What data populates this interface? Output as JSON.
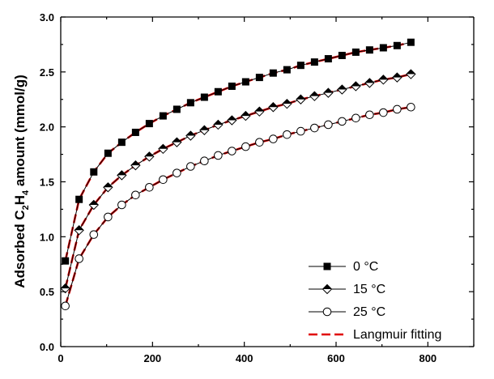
{
  "chart_data": {
    "type": "line",
    "title": "",
    "xlabel": "",
    "ylabel_parts": [
      "Adsorbed C",
      "2",
      "H",
      "4",
      " amount (mmol/g)"
    ],
    "xlim": [
      0,
      900
    ],
    "ylim": [
      0.0,
      3.0
    ],
    "x_ticks": [
      0,
      200,
      400,
      600,
      800
    ],
    "x_tick_labels": [
      "0",
      "200",
      "400",
      "600",
      "800"
    ],
    "y_ticks": [
      0.0,
      0.5,
      1.0,
      1.5,
      2.0,
      2.5,
      3.0
    ],
    "y_tick_labels": [
      "0.0",
      "0.5",
      "1.0",
      "1.5",
      "2.0",
      "2.5",
      "3.0"
    ],
    "x": [
      10,
      40,
      72,
      103,
      133,
      163,
      193,
      223,
      253,
      283,
      313,
      343,
      373,
      403,
      433,
      463,
      493,
      523,
      553,
      583,
      613,
      643,
      673,
      703,
      733,
      763
    ],
    "series": [
      {
        "name": "0 °C",
        "marker": "square-filled",
        "color": "#000000",
        "values": [
          0.78,
          1.34,
          1.59,
          1.76,
          1.86,
          1.95,
          2.03,
          2.1,
          2.16,
          2.22,
          2.27,
          2.32,
          2.37,
          2.41,
          2.45,
          2.49,
          2.52,
          2.56,
          2.59,
          2.62,
          2.65,
          2.68,
          2.7,
          2.72,
          2.74,
          2.77
        ]
      },
      {
        "name": "15 °C",
        "marker": "diamond-half",
        "color": "#000000",
        "values": [
          0.53,
          1.06,
          1.29,
          1.45,
          1.56,
          1.65,
          1.73,
          1.8,
          1.86,
          1.92,
          1.97,
          2.02,
          2.06,
          2.1,
          2.14,
          2.18,
          2.21,
          2.25,
          2.28,
          2.31,
          2.34,
          2.37,
          2.4,
          2.43,
          2.45,
          2.48
        ]
      },
      {
        "name": "25 °C",
        "marker": "circle-open",
        "color": "#000000",
        "values": [
          0.37,
          0.8,
          1.02,
          1.18,
          1.29,
          1.38,
          1.45,
          1.52,
          1.58,
          1.64,
          1.69,
          1.74,
          1.78,
          1.82,
          1.86,
          1.89,
          1.93,
          1.96,
          1.99,
          2.02,
          2.05,
          2.08,
          2.11,
          2.13,
          2.16,
          2.18
        ]
      },
      {
        "name": "Langmuir fitting",
        "marker": "none",
        "style": "dashed",
        "color": "#e00000",
        "fits_series": [
          0,
          1,
          2
        ]
      }
    ],
    "legend_position": "bottom-right",
    "grid": false
  }
}
